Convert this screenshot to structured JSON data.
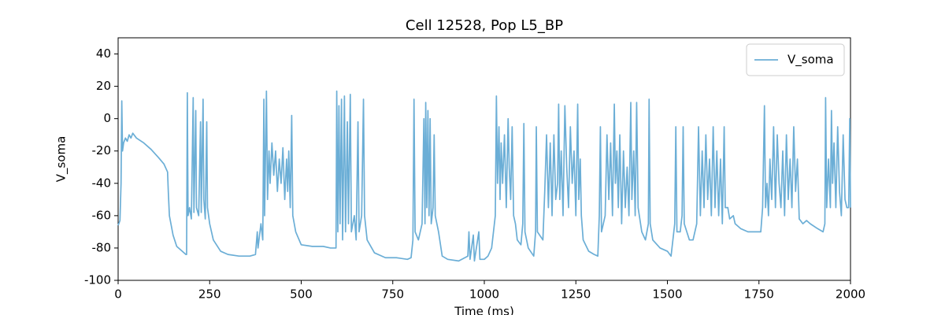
{
  "chart_data": {
    "type": "line",
    "title": "Cell 12528, Pop L5_BP",
    "x_label": "Time (ms)",
    "y_label": "V_soma",
    "x": [
      0,
      5,
      8,
      10,
      12,
      15,
      20,
      25,
      30,
      35,
      40,
      50,
      70,
      90,
      110,
      125,
      135,
      137,
      140,
      150,
      160,
      175,
      185,
      187,
      189,
      191,
      195,
      200,
      205,
      207,
      212,
      214,
      220,
      225,
      227,
      232,
      234,
      238,
      242,
      244,
      250,
      260,
      280,
      300,
      330,
      360,
      375,
      380,
      382,
      390,
      395,
      398,
      400,
      405,
      408,
      412,
      415,
      420,
      425,
      430,
      435,
      440,
      445,
      450,
      455,
      460,
      463,
      466,
      470,
      474,
      477,
      485,
      500,
      530,
      560,
      580,
      595,
      597,
      600,
      603,
      606,
      610,
      613,
      618,
      621,
      626,
      629,
      634,
      637,
      645,
      650,
      655,
      658,
      665,
      670,
      673,
      680,
      700,
      730,
      760,
      790,
      800,
      805,
      808,
      811,
      820,
      830,
      835,
      838,
      840,
      843,
      846,
      849,
      852,
      855,
      860,
      863,
      866,
      875,
      885,
      900,
      930,
      955,
      958,
      961,
      970,
      973,
      985,
      988,
      1000,
      1010,
      1020,
      1030,
      1033,
      1036,
      1040,
      1043,
      1046,
      1050,
      1055,
      1060,
      1065,
      1068,
      1072,
      1076,
      1080,
      1085,
      1090,
      1100,
      1105,
      1108,
      1111,
      1120,
      1135,
      1140,
      1142,
      1145,
      1160,
      1165,
      1170,
      1175,
      1180,
      1185,
      1190,
      1195,
      1200,
      1203,
      1206,
      1210,
      1215,
      1220,
      1225,
      1230,
      1235,
      1240,
      1245,
      1250,
      1255,
      1258,
      1262,
      1265,
      1270,
      1285,
      1300,
      1310,
      1314,
      1317,
      1320,
      1330,
      1335,
      1340,
      1345,
      1350,
      1355,
      1358,
      1362,
      1366,
      1370,
      1375,
      1380,
      1385,
      1390,
      1395,
      1400,
      1403,
      1408,
      1412,
      1416,
      1420,
      1430,
      1440,
      1448,
      1450,
      1453,
      1460,
      1480,
      1500,
      1510,
      1520,
      1523,
      1526,
      1535,
      1540,
      1543,
      1546,
      1560,
      1570,
      1580,
      1585,
      1590,
      1595,
      1600,
      1605,
      1610,
      1615,
      1620,
      1625,
      1630,
      1635,
      1640,
      1645,
      1650,
      1655,
      1658,
      1665,
      1670,
      1680,
      1685,
      1700,
      1720,
      1740,
      1755,
      1760,
      1765,
      1768,
      1772,
      1776,
      1780,
      1785,
      1790,
      1795,
      1800,
      1805,
      1810,
      1815,
      1820,
      1825,
      1830,
      1835,
      1840,
      1845,
      1850,
      1855,
      1860,
      1870,
      1880,
      1890,
      1910,
      1925,
      1930,
      1932,
      1935,
      1940,
      1945,
      1948,
      1951,
      1955,
      1960,
      1965,
      1970,
      1975,
      1980,
      1985,
      1990,
      1995,
      1998,
      2000
    ],
    "series": [
      {
        "name": "V_soma",
        "color": "#6baed6",
        "values": [
          -66,
          -63,
          -40,
          11,
          -20,
          -15,
          -12,
          -14,
          -10,
          -12,
          -9,
          -12,
          -15,
          -19,
          -24,
          -28,
          -33,
          -45,
          -60,
          -72,
          -79,
          -82,
          -84,
          -84,
          16,
          -60,
          -55,
          -62,
          13,
          -58,
          5,
          -55,
          -60,
          -2,
          -58,
          12,
          -50,
          -62,
          -2,
          -55,
          -65,
          -75,
          -82,
          -84,
          -85,
          -85,
          -84,
          -70,
          -80,
          -65,
          -75,
          12,
          -60,
          17,
          -50,
          -20,
          -40,
          -15,
          -35,
          -20,
          -45,
          -25,
          -40,
          -18,
          -50,
          -25,
          -45,
          -20,
          -55,
          2,
          -60,
          -70,
          -78,
          -79,
          -79,
          -80,
          -80,
          17,
          -70,
          8,
          -65,
          12,
          -75,
          14,
          -70,
          -2,
          -65,
          15,
          -70,
          -60,
          -75,
          -2,
          -70,
          -60,
          12,
          -60,
          -75,
          -83,
          -86,
          -86,
          -87,
          -86,
          -75,
          12,
          -70,
          -75,
          -65,
          0,
          -65,
          10,
          -55,
          5,
          -60,
          0,
          -65,
          -55,
          -10,
          -60,
          -70,
          -85,
          -87,
          -88,
          -85,
          -70,
          -87,
          -72,
          -88,
          -70,
          -87,
          -87,
          -85,
          -80,
          -60,
          14,
          -40,
          -5,
          -50,
          -15,
          -40,
          -10,
          -55,
          0,
          -30,
          -50,
          -5,
          -60,
          -65,
          -75,
          -78,
          -65,
          -3,
          -70,
          -80,
          -85,
          -70,
          -5,
          -70,
          -75,
          -45,
          -10,
          -55,
          -15,
          -60,
          -10,
          -50,
          -40,
          9,
          -50,
          -20,
          -60,
          8,
          -30,
          -55,
          -5,
          -40,
          -20,
          -60,
          9,
          -50,
          -25,
          -60,
          -75,
          -82,
          -84,
          -85,
          -60,
          -5,
          -70,
          -60,
          -10,
          -50,
          -15,
          -60,
          9,
          -40,
          -20,
          -55,
          -10,
          -65,
          -20,
          -55,
          -30,
          -60,
          10,
          -50,
          -20,
          -60,
          10,
          -55,
          -70,
          -75,
          -65,
          12,
          -65,
          -75,
          -80,
          -82,
          -85,
          -65,
          -5,
          -70,
          -70,
          -60,
          -5,
          -65,
          -75,
          -75,
          -65,
          -5,
          -60,
          -20,
          -55,
          -10,
          -50,
          -25,
          -60,
          -5,
          -55,
          -20,
          -60,
          -25,
          -65,
          -5,
          -55,
          -55,
          -62,
          -60,
          -65,
          -68,
          -70,
          -70,
          -70,
          -55,
          8,
          -55,
          -40,
          -60,
          -25,
          -50,
          -5,
          -55,
          -10,
          -40,
          -55,
          -20,
          -60,
          -10,
          -50,
          -25,
          -55,
          -5,
          -45,
          -25,
          -62,
          -65,
          -63,
          -65,
          -68,
          -70,
          -65,
          13,
          -55,
          -25,
          -55,
          5,
          -40,
          -15,
          -55,
          -5,
          -45,
          -60,
          -10,
          -50,
          -55,
          -55,
          0,
          -55
        ]
      }
    ],
    "xlim": [
      0,
      2000
    ],
    "ylim": [
      -100,
      50
    ],
    "xticks": [
      0,
      250,
      500,
      750,
      1000,
      1250,
      1500,
      1750,
      2000
    ],
    "yticks": [
      -100,
      -80,
      -60,
      -40,
      -20,
      0,
      20,
      40
    ],
    "legend": "upper right"
  }
}
